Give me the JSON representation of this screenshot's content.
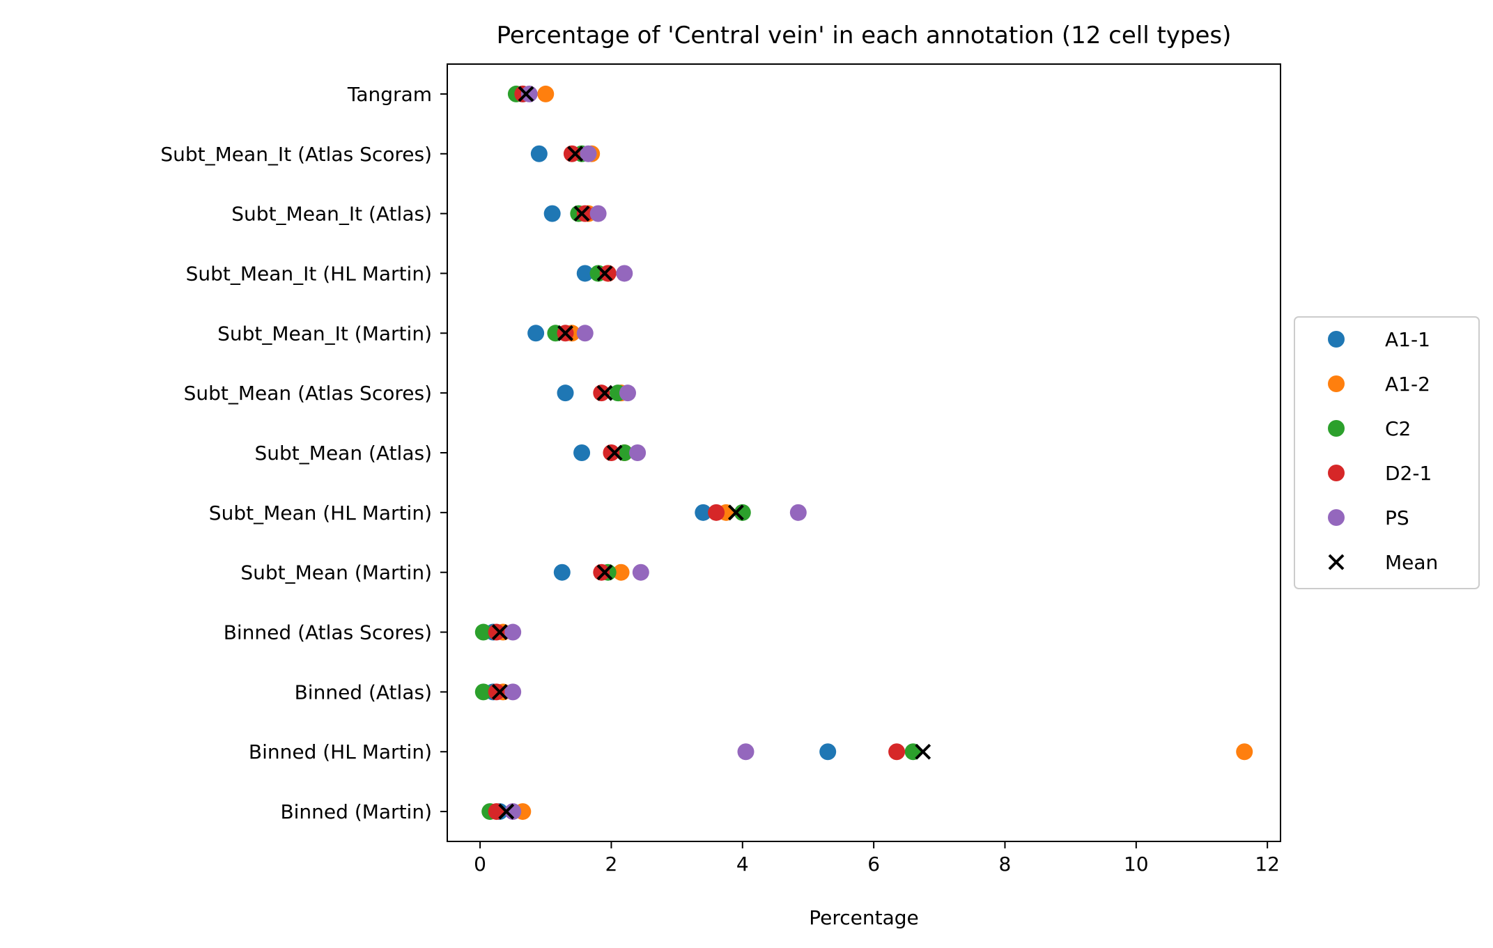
{
  "chart_data": {
    "type": "scatter",
    "title": "Percentage of 'Central vein' in each annotation (12 cell types)",
    "xlabel": "Percentage",
    "ylabel": "",
    "xlim": [
      -0.5,
      12.2
    ],
    "xticks": [
      "0",
      "2",
      "4",
      "6",
      "8",
      "10",
      "12"
    ],
    "categories": [
      "Tangram",
      "Subt_Mean_It (Atlas Scores)",
      "Subt_Mean_It (Atlas)",
      "Subt_Mean_It (HL Martin)",
      "Subt_Mean_It (Martin)",
      "Subt_Mean (Atlas Scores)",
      "Subt_Mean (Atlas)",
      "Subt_Mean (HL Martin)",
      "Subt_Mean (Martin)",
      "Binned (Atlas Scores)",
      "Binned (Atlas)",
      "Binned (HL Martin)",
      "Binned (Martin)"
    ],
    "series": [
      {
        "name": "A1-1",
        "color": "#1f77b4",
        "marker": "circle",
        "values": [
          0.65,
          0.9,
          1.1,
          1.6,
          0.85,
          1.3,
          1.55,
          3.4,
          1.25,
          0.2,
          0.2,
          5.3,
          0.3
        ]
      },
      {
        "name": "A1-2",
        "color": "#ff7f0e",
        "marker": "circle",
        "values": [
          1.0,
          1.7,
          1.65,
          1.95,
          1.4,
          2.15,
          2.2,
          3.75,
          2.15,
          0.35,
          0.35,
          11.65,
          0.65
        ]
      },
      {
        "name": "C2",
        "color": "#2ca02c",
        "marker": "circle",
        "values": [
          0.55,
          1.55,
          1.5,
          1.8,
          1.15,
          2.1,
          2.2,
          4.0,
          1.95,
          0.05,
          0.05,
          6.6,
          0.15
        ]
      },
      {
        "name": "D2-1",
        "color": "#d62728",
        "marker": "circle",
        "values": [
          0.65,
          1.4,
          1.6,
          1.95,
          1.3,
          1.85,
          2.0,
          3.6,
          1.85,
          0.25,
          0.25,
          6.35,
          0.25
        ]
      },
      {
        "name": "PS",
        "color": "#9467bd",
        "marker": "circle",
        "values": [
          0.75,
          1.65,
          1.8,
          2.2,
          1.6,
          2.25,
          2.4,
          4.85,
          2.45,
          0.5,
          0.5,
          4.05,
          0.5
        ]
      },
      {
        "name": "Mean",
        "color": "#000000",
        "marker": "x",
        "values": [
          0.7,
          1.45,
          1.55,
          1.9,
          1.3,
          1.9,
          2.05,
          3.9,
          1.9,
          0.3,
          0.3,
          6.75,
          0.4
        ]
      }
    ],
    "legend_position": "right, outside plot"
  }
}
